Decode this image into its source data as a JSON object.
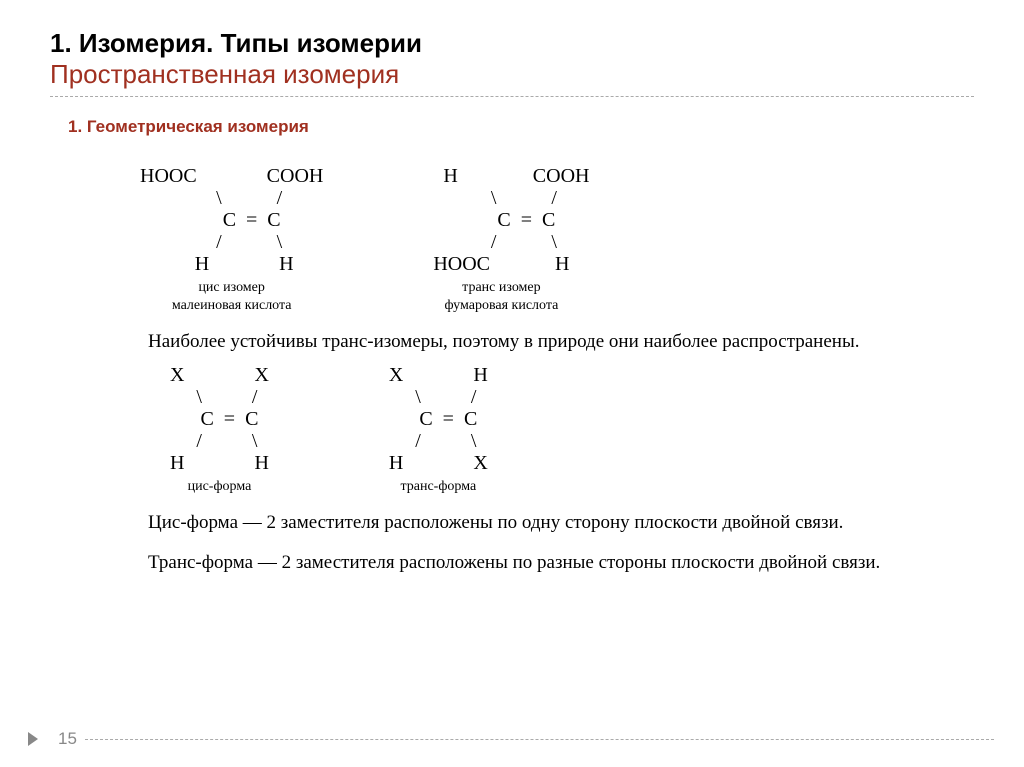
{
  "title": {
    "line1": "1. Изомерия. Типы изомерии",
    "line2": "Пространственная изомерия"
  },
  "subheading": "1. Геометрическая изомерия",
  "molecules_top": [
    {
      "formula": "HOOC              COOH\n       \\           /\n        C  =  C\n       /           \\\n     H              H",
      "caption": "цис изомер\nмалеиновая кислота"
    },
    {
      "formula": "      H               COOH\n         \\           /\n          C  =  C\n         /           \\\nHOOC             H",
      "caption": "транс изомер\nфумаровая кислота"
    }
  ],
  "para1": "Наиболее устойчивы транс-изомеры, поэтому в природе они наиболее распространены.",
  "molecules_mid": [
    {
      "formula": "X              X\n   \\          /\n    C  =  C\n   /          \\\nH              H",
      "caption": "цис-форма"
    },
    {
      "formula": "X              H\n   \\          /\n    C  =  C\n   /          \\\nH              X",
      "caption": "транс-форма"
    }
  ],
  "para2": "Цис-форма — 2 заместителя расположены по одну сторону плоскости двойной связи.",
  "para3": "Транс-форма — 2 заместителя расположены по разные стороны плоскости двойной связи.",
  "page_number": "15",
  "colors": {
    "heading_red": "#a03020",
    "black": "#000000",
    "dash": "#aaaaaa",
    "grey": "#888888",
    "bg": "#ffffff"
  },
  "fonts": {
    "title_size": 26,
    "sub_size": 17,
    "formula_size": 20,
    "caption_size": 14,
    "para_size": 19
  }
}
